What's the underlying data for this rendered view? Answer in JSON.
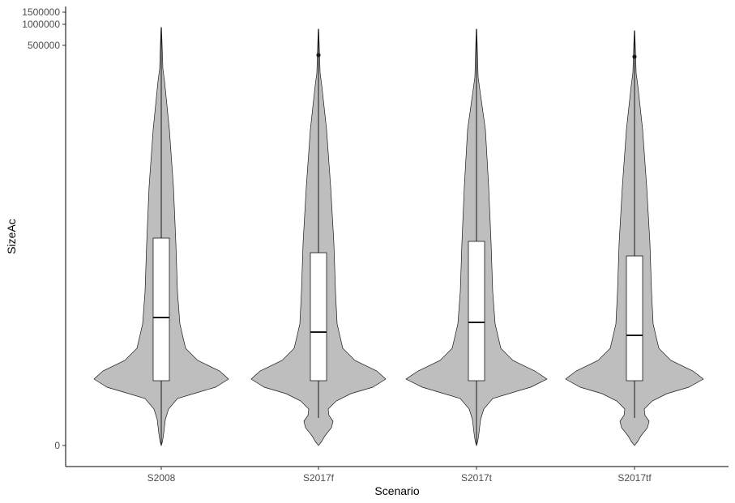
{
  "chart_data": {
    "type": "violin",
    "xlabel": "Scenario",
    "ylabel": "SizeAc",
    "y_scale": "transformed (sqrt-like); tick labels at 0, 500000, 1000000, 1500000",
    "y_ticks": [
      {
        "value": 0,
        "label": "0"
      },
      {
        "value": 500000,
        "label": "500000"
      },
      {
        "value": 1000000,
        "label": "1000000"
      },
      {
        "value": 1500000,
        "label": "1500000"
      }
    ],
    "grid": false,
    "legend": "none",
    "categories": [
      "S2008",
      "S2017f",
      "S2017t",
      "S2017tf"
    ],
    "violins": [
      {
        "category": "S2008",
        "box": {
          "lower_whisker_to": 0,
          "q1": 500,
          "median": 6000,
          "q3": 27000,
          "upper_whisker_to": 1500000
        },
        "outliers": []
      },
      {
        "category": "S2017f",
        "box": {
          "lower_whisker_to": 50,
          "q1": 500,
          "median": 4000,
          "q3": 19000,
          "upper_whisker_to": 1500000
        },
        "outliers": [
          300000
        ]
      },
      {
        "category": "S2017t",
        "box": {
          "lower_whisker_to": 0,
          "q1": 500,
          "median": 5500,
          "q3": 25000,
          "upper_whisker_to": 1500000
        },
        "outliers": []
      },
      {
        "category": "S2017tf",
        "box": {
          "lower_whisker_to": 50,
          "q1": 500,
          "median": 3700,
          "q3": 17000,
          "upper_whisker_to": 1500000
        },
        "outliers": [
          290000
        ]
      }
    ],
    "colors": {
      "violin_fill": "#bebebe",
      "outline": "#1a1a1a",
      "box_fill": "#ffffff"
    }
  }
}
